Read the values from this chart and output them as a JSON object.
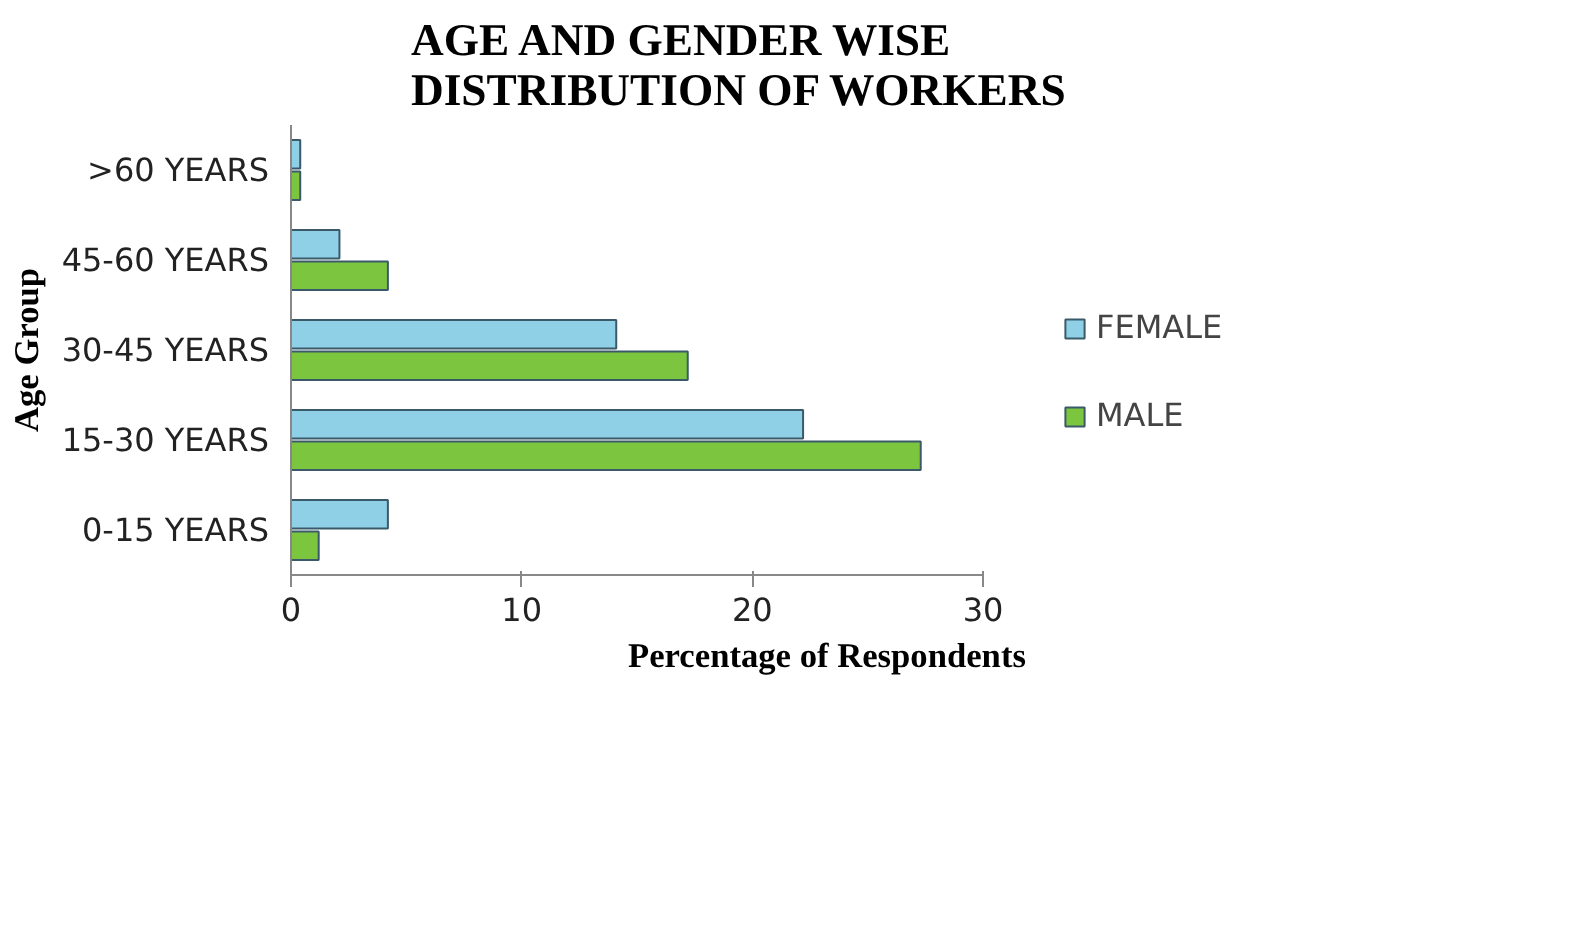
{
  "chart_data": {
    "type": "bar",
    "orientation": "horizontal",
    "title": "AGE AND GENDER WISE\nDISTRIBUTION OF WORKERS",
    "xlabel": "Percentage of Respondents",
    "ylabel": "Age Group",
    "categories": [
      ">60 YEARS",
      "45-60 YEARS",
      "30-45 YEARS",
      "15-30 YEARS",
      "0-15 YEARS"
    ],
    "series": [
      {
        "name": "FEMALE",
        "color": "#8fd0e6",
        "values": [
          0.4,
          2.1,
          14.1,
          22.2,
          4.2
        ]
      },
      {
        "name": "MALE",
        "color": "#7cc63f",
        "values": [
          0.4,
          4.2,
          17.2,
          27.3,
          1.2
        ]
      }
    ],
    "xlim": [
      0,
      30
    ],
    "xticks": [
      0,
      10,
      20,
      30
    ],
    "grid": false,
    "legend": "right"
  }
}
